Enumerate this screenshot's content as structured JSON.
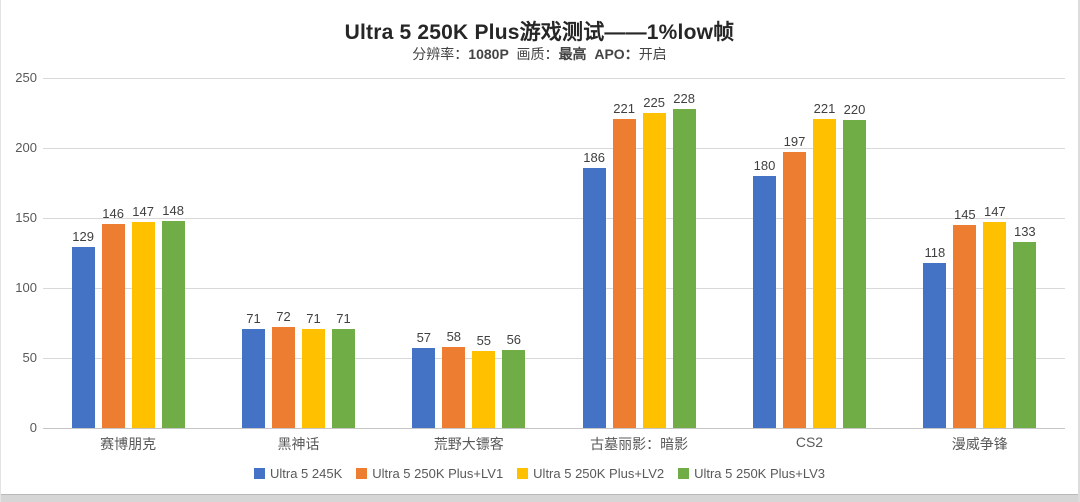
{
  "chart_data": {
    "type": "bar",
    "title": "Ultra 5 250K Plus游戏测试——1%low帧",
    "subtitle_parts": [
      {
        "text": "分辨率：",
        "bold": false
      },
      {
        "text": "1080P",
        "bold": true
      },
      {
        "text": "  画质：",
        "bold": false
      },
      {
        "text": "最高",
        "bold": true
      },
      {
        "text": "  APO：",
        "bold": true
      },
      {
        "text": "开启",
        "bold": false
      }
    ],
    "categories": [
      "赛博朋克",
      "黑神话",
      "荒野大镖客",
      "古墓丽影：暗影",
      "CS2",
      "漫威争锋"
    ],
    "series": [
      {
        "name": "Ultra 5 245K",
        "color": "#4472C4",
        "values": [
          129,
          71,
          57,
          186,
          180,
          118
        ]
      },
      {
        "name": "Ultra 5 250K Plus+LV1",
        "color": "#ED7D31",
        "values": [
          146,
          72,
          58,
          221,
          197,
          145
        ]
      },
      {
        "name": "Ultra 5 250K Plus+LV2",
        "color": "#FFC000",
        "values": [
          147,
          71,
          55,
          225,
          221,
          147
        ]
      },
      {
        "name": "Ultra 5 250K Plus+LV3",
        "color": "#70AD47",
        "values": [
          148,
          71,
          56,
          228,
          220,
          133
        ]
      }
    ],
    "y_ticks": [
      0,
      50,
      100,
      150,
      200,
      250
    ],
    "ylim": [
      0,
      250
    ],
    "grid": true,
    "legend_position": "bottom",
    "value_labels": true
  }
}
